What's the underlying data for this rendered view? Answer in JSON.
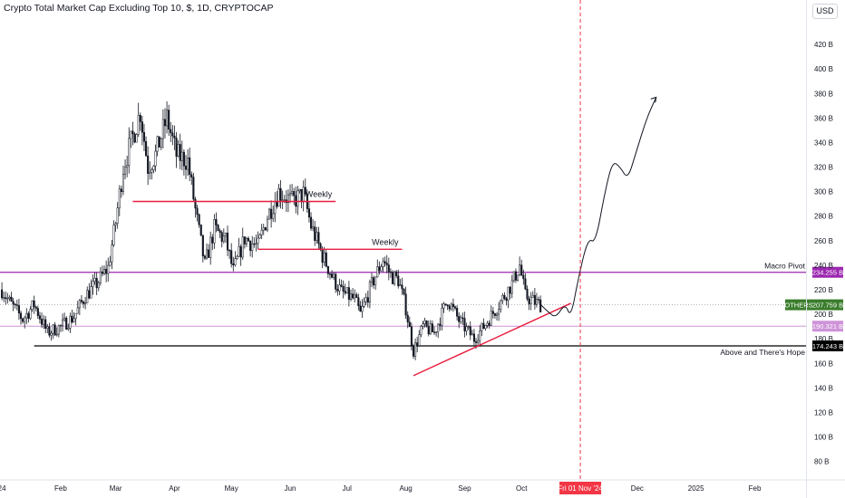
{
  "header": {
    "title": "Crypto Total Market Cap Excluding Top 10, $, 1D, CRYPTOCAP",
    "currency_button": "USD"
  },
  "colors": {
    "candle": "#131722",
    "red_line": "#e91e3f",
    "purple_line": "#9c27b0",
    "light_purple_line": "#ce93d8",
    "black_line": "#000000",
    "current_price": "#3a7d2c",
    "date_marker": "#f23645"
  },
  "chart_data": {
    "type": "candlestick",
    "title": "Crypto Total Market Cap Excluding Top 10, $, 1D, CRYPTOCAP",
    "y_unit": "USD (billions)",
    "ylim": [
      65,
      440
    ],
    "xlim": [
      "2023-12-31",
      "2025-02-28"
    ],
    "y_ticks": [
      "80 B",
      "100 B",
      "120 B",
      "140 B",
      "160 B",
      "180 B",
      "200 B",
      "220 B",
      "240 B",
      "260 B",
      "280 B",
      "300 B",
      "320 B",
      "340 B",
      "360 B",
      "380 B",
      "400 B",
      "420 B"
    ],
    "x_ticks": [
      {
        "label": "24",
        "date": "2024-01-01"
      },
      {
        "label": "Feb",
        "date": "2024-02-01"
      },
      {
        "label": "Mar",
        "date": "2024-03-01"
      },
      {
        "label": "Apr",
        "date": "2024-04-01"
      },
      {
        "label": "May",
        "date": "2024-05-01"
      },
      {
        "label": "Jun",
        "date": "2024-06-01"
      },
      {
        "label": "Jul",
        "date": "2024-07-01"
      },
      {
        "label": "Aug",
        "date": "2024-08-01"
      },
      {
        "label": "Sep",
        "date": "2024-09-01"
      },
      {
        "label": "Oct",
        "date": "2024-10-01"
      },
      {
        "label": "Dec",
        "date": "2024-12-01"
      },
      {
        "label": "2025",
        "date": "2025-01-01"
      },
      {
        "label": "Feb",
        "date": "2025-02-01"
      }
    ],
    "price_path": [
      [
        "2024-01-01",
        220
      ],
      [
        "2024-01-05",
        210
      ],
      [
        "2024-01-12",
        196
      ],
      [
        "2024-01-18",
        208
      ],
      [
        "2024-01-25",
        185
      ],
      [
        "2024-02-01",
        190
      ],
      [
        "2024-02-08",
        198
      ],
      [
        "2024-02-14",
        215
      ],
      [
        "2024-02-20",
        225
      ],
      [
        "2024-02-26",
        238
      ],
      [
        "2024-03-01",
        275
      ],
      [
        "2024-03-05",
        320
      ],
      [
        "2024-03-10",
        345
      ],
      [
        "2024-03-14",
        365
      ],
      [
        "2024-03-18",
        320
      ],
      [
        "2024-03-22",
        330
      ],
      [
        "2024-03-28",
        360
      ],
      [
        "2024-04-02",
        330
      ],
      [
        "2024-04-08",
        325
      ],
      [
        "2024-04-12",
        285
      ],
      [
        "2024-04-17",
        240
      ],
      [
        "2024-04-22",
        270
      ],
      [
        "2024-04-28",
        260
      ],
      [
        "2024-05-02",
        235
      ],
      [
        "2024-05-08",
        262
      ],
      [
        "2024-05-15",
        255
      ],
      [
        "2024-05-20",
        280
      ],
      [
        "2024-05-26",
        300
      ],
      [
        "2024-06-02",
        292
      ],
      [
        "2024-06-08",
        298
      ],
      [
        "2024-06-12",
        272
      ],
      [
        "2024-06-18",
        248
      ],
      [
        "2024-06-24",
        228
      ],
      [
        "2024-06-28",
        218
      ],
      [
        "2024-07-05",
        212
      ],
      [
        "2024-07-08",
        200
      ],
      [
        "2024-07-15",
        228
      ],
      [
        "2024-07-20",
        245
      ],
      [
        "2024-07-24",
        232
      ],
      [
        "2024-07-28",
        228
      ],
      [
        "2024-08-01",
        205
      ],
      [
        "2024-08-05",
        170
      ],
      [
        "2024-08-10",
        190
      ],
      [
        "2024-08-16",
        185
      ],
      [
        "2024-08-23",
        212
      ],
      [
        "2024-08-29",
        195
      ],
      [
        "2024-09-06",
        180
      ],
      [
        "2024-09-12",
        192
      ],
      [
        "2024-09-19",
        208
      ],
      [
        "2024-09-26",
        225
      ],
      [
        "2024-09-30",
        240
      ],
      [
        "2024-10-03",
        215
      ],
      [
        "2024-10-08",
        210
      ],
      [
        "2024-10-11",
        207.759
      ]
    ],
    "current_price": {
      "label": "OTHERS",
      "value": "207.759 B"
    },
    "date_marker": {
      "date": "2024-11-01",
      "label": "Fri 01 Nov '24"
    },
    "horizontal_levels": [
      {
        "name": "Macro Pivot",
        "value": 234.255,
        "tag": "234.255 B",
        "color": "#9c27b0",
        "label_pos": "right"
      },
      {
        "name": "Above and There's Hope",
        "value": 174.243,
        "tag": "174.243 B",
        "color": "#000000",
        "label_pos": "right"
      },
      {
        "name": "",
        "value": 190.321,
        "tag": "190.321 B",
        "color": "#ce93d8",
        "label_pos": "right"
      }
    ],
    "weekly_levels": [
      {
        "label": "Weekly",
        "value": 292,
        "from": "2024-03-10",
        "to": "2024-06-25"
      },
      {
        "label": "Weekly",
        "value": 253,
        "from": "2024-05-15",
        "to": "2024-07-30"
      }
    ],
    "trendline": {
      "from": [
        "2024-08-05",
        150
      ],
      "to": [
        "2024-10-27",
        209
      ]
    },
    "projection": [
      [
        "2024-10-11",
        208
      ],
      [
        "2024-10-15",
        202
      ],
      [
        "2024-10-19",
        197
      ],
      [
        "2024-10-24",
        209
      ],
      [
        "2024-10-27",
        197
      ],
      [
        "2024-10-31",
        230
      ],
      [
        "2024-11-05",
        262
      ],
      [
        "2024-11-09",
        258
      ],
      [
        "2024-11-14",
        300
      ],
      [
        "2024-11-18",
        325
      ],
      [
        "2024-11-22",
        320
      ],
      [
        "2024-11-26",
        310
      ],
      [
        "2024-11-30",
        330
      ],
      [
        "2024-12-06",
        360
      ],
      [
        "2024-12-11",
        377
      ]
    ]
  }
}
